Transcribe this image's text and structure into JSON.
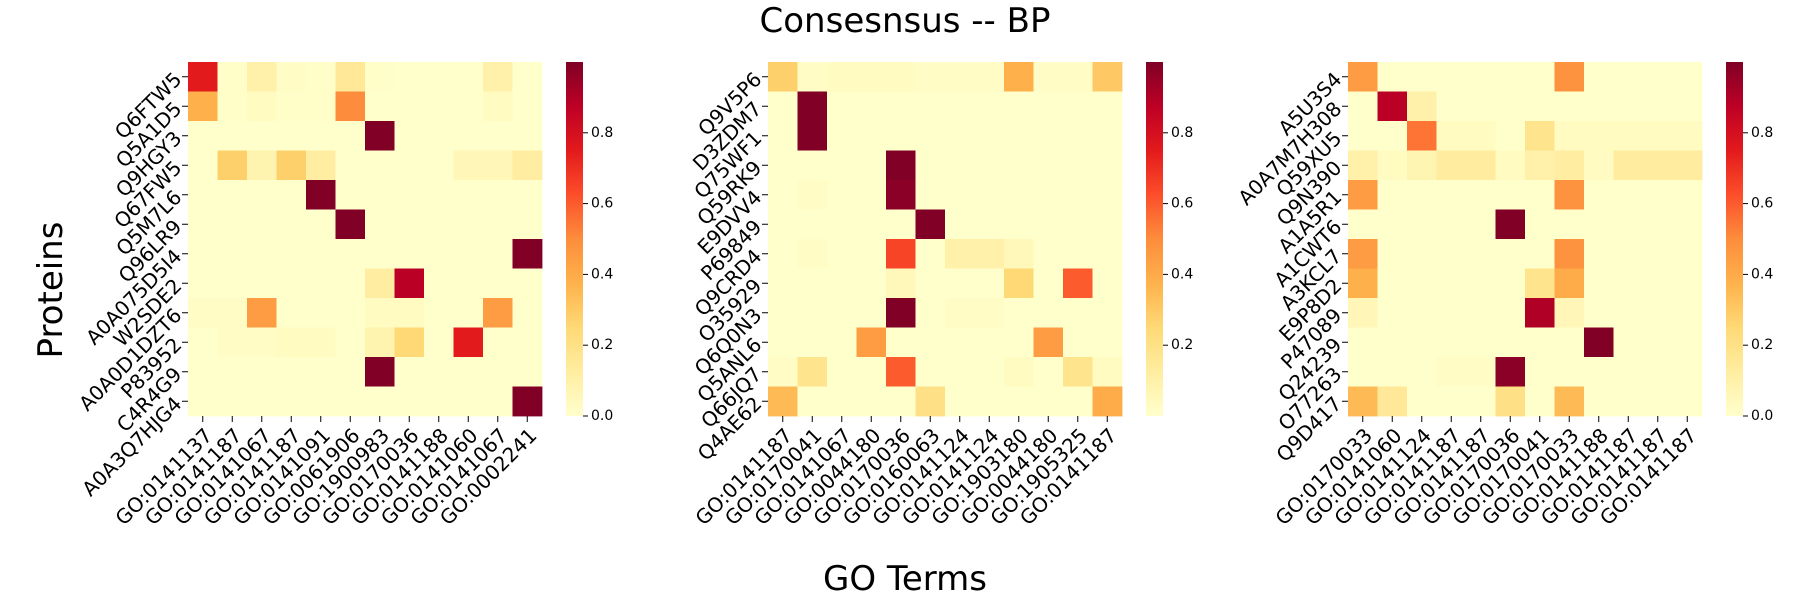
{
  "chart_data": {
    "type": "heatmap",
    "title": "Consesnsus -- BP",
    "xlabel": "GO Terms",
    "ylabel": "Proteins",
    "colormap": "YlOrRd",
    "colormap_stops": [
      "#ffffcc",
      "#ffeda0",
      "#fed976",
      "#feb24c",
      "#fd8d3c",
      "#fc4e2a",
      "#e31a1c",
      "#bd0026",
      "#800026"
    ],
    "panels": [
      {
        "rows": [
          "Q6FTW5",
          "Q5A1D5",
          "Q9HGY3",
          "Q67FW5",
          "Q5M7L6",
          "Q96LR9",
          "A0A075D5I4",
          "W2SDE2",
          "A0A0D1DZT6",
          "P83952",
          "C4R4G9",
          "A0A3Q7HJG4"
        ],
        "cols": [
          "GO:0141137",
          "GO:0141187",
          "GO:0141067",
          "GO:0141187",
          "GO:0141091",
          "GO:0061906",
          "GO:1900983",
          "GO:0170036",
          "GO:0141188",
          "GO:0141060",
          "GO:0141067",
          "GO:0002241"
        ],
        "values": [
          [
            0.75,
            0.01,
            0.1,
            0.02,
            0.01,
            0.15,
            0.01,
            0.0,
            0.0,
            0.0,
            0.1,
            0.0
          ],
          [
            0.38,
            0.01,
            0.03,
            0.01,
            0.01,
            0.5,
            0.0,
            0.0,
            0.0,
            0.0,
            0.03,
            0.0
          ],
          [
            0.0,
            0.0,
            0.0,
            0.0,
            0.0,
            0.0,
            1.0,
            0.0,
            0.0,
            0.0,
            0.0,
            0.0
          ],
          [
            0.0,
            0.28,
            0.08,
            0.28,
            0.12,
            0.0,
            0.0,
            0.0,
            0.0,
            0.06,
            0.06,
            0.12
          ],
          [
            0.0,
            0.0,
            0.0,
            0.0,
            1.0,
            0.0,
            0.0,
            0.0,
            0.0,
            0.0,
            0.0,
            0.0
          ],
          [
            0.0,
            0.0,
            0.0,
            0.0,
            0.0,
            1.0,
            0.0,
            0.0,
            0.0,
            0.0,
            0.0,
            0.0
          ],
          [
            0.0,
            0.0,
            0.0,
            0.0,
            0.0,
            0.0,
            0.0,
            0.0,
            0.0,
            0.0,
            0.0,
            1.0
          ],
          [
            0.0,
            0.0,
            0.0,
            0.0,
            0.0,
            0.0,
            0.12,
            0.88,
            0.0,
            0.0,
            0.0,
            0.0
          ],
          [
            0.02,
            0.02,
            0.45,
            0.0,
            0.0,
            0.0,
            0.03,
            0.03,
            0.0,
            0.0,
            0.45,
            0.0
          ],
          [
            0.0,
            0.02,
            0.02,
            0.03,
            0.03,
            0.0,
            0.08,
            0.25,
            0.0,
            0.75,
            0.0,
            0.0
          ],
          [
            0.0,
            0.0,
            0.0,
            0.0,
            0.0,
            0.0,
            1.0,
            0.0,
            0.0,
            0.0,
            0.0,
            0.0
          ],
          [
            0.0,
            0.0,
            0.0,
            0.0,
            0.0,
            0.0,
            0.0,
            0.0,
            0.0,
            0.0,
            0.0,
            1.0
          ]
        ],
        "colorbar": {
          "range": [
            0,
            1
          ],
          "ticks": [
            0.0,
            0.2,
            0.4,
            0.6,
            0.8
          ],
          "tick_labels": [
            "0.0",
            "0.2",
            "0.4",
            "0.6",
            "0.8"
          ]
        }
      },
      {
        "rows": [
          "Q9V5P6",
          "D3ZDM7",
          "Q75WF1",
          "Q59RK9",
          "E9DVV4",
          "P69849",
          "Q9CRD4",
          "O35929",
          "Q6Q0N3",
          "Q5ANL6",
          "Q66JQ7",
          "Q4AE62"
        ],
        "cols": [
          "GO:0141187",
          "GO:0170041",
          "GO:0141067",
          "GO:0044180",
          "GO:0170036",
          "GO:0160063",
          "GO:0141124",
          "GO:0141124",
          "GO:1903180",
          "GO:0044180",
          "GO:1905325",
          "GO:0141187"
        ],
        "values": [
          [
            0.28,
            0.02,
            0.03,
            0.03,
            0.03,
            0.02,
            0.02,
            0.02,
            0.38,
            0.02,
            0.02,
            0.3
          ],
          [
            0.0,
            1.0,
            0.0,
            0.0,
            0.0,
            0.0,
            0.0,
            0.0,
            0.0,
            0.0,
            0.0,
            0.0
          ],
          [
            0.0,
            1.0,
            0.0,
            0.0,
            0.0,
            0.0,
            0.0,
            0.0,
            0.0,
            0.0,
            0.0,
            0.0
          ],
          [
            0.0,
            0.0,
            0.0,
            0.0,
            1.0,
            0.0,
            0.0,
            0.0,
            0.0,
            0.0,
            0.0,
            0.0
          ],
          [
            0.0,
            0.02,
            0.0,
            0.0,
            0.98,
            0.0,
            0.0,
            0.0,
            0.0,
            0.0,
            0.0,
            0.0
          ],
          [
            0.0,
            0.0,
            0.0,
            0.0,
            0.0,
            1.0,
            0.0,
            0.0,
            0.0,
            0.0,
            0.0,
            0.0
          ],
          [
            0.0,
            0.02,
            0.0,
            0.0,
            0.65,
            0.0,
            0.1,
            0.1,
            0.05,
            0.0,
            0.0,
            0.0
          ],
          [
            0.0,
            0.0,
            0.0,
            0.0,
            0.05,
            0.0,
            0.0,
            0.0,
            0.25,
            0.0,
            0.6,
            0.0
          ],
          [
            0.0,
            0.0,
            0.0,
            0.0,
            1.0,
            0.0,
            0.02,
            0.02,
            0.0,
            0.0,
            0.0,
            0.0
          ],
          [
            0.0,
            0.0,
            0.0,
            0.45,
            0.0,
            0.0,
            0.0,
            0.0,
            0.0,
            0.45,
            0.0,
            0.0
          ],
          [
            0.02,
            0.18,
            0.0,
            0.0,
            0.6,
            0.0,
            0.0,
            0.0,
            0.03,
            0.0,
            0.18,
            0.03
          ],
          [
            0.35,
            0.0,
            0.0,
            0.0,
            0.0,
            0.2,
            0.0,
            0.0,
            0.0,
            0.0,
            0.0,
            0.4
          ]
        ],
        "colorbar": {
          "range": [
            0,
            1
          ],
          "ticks": [
            0.2,
            0.4,
            0.6,
            0.8
          ],
          "tick_labels": [
            "0.2",
            "0.4",
            "0.6",
            "0.8"
          ]
        }
      },
      {
        "rows": [
          "A5U3S4",
          "A0A7M7H308",
          "Q59XU5",
          "Q9N390",
          "A1A5R1",
          "A1CWT6",
          "A3KCL7",
          "E9P8D2",
          "P47089",
          "Q24239",
          "O77263",
          "Q9D417"
        ],
        "cols": [
          "GO:0170033",
          "GO:0141060",
          "GO:0141124",
          "GO:0141187",
          "GO:0141187",
          "GO:0170036",
          "GO:0170041",
          "GO:0170033",
          "GO:0141188",
          "GO:0141187",
          "GO:0141187",
          "GO:0141187"
        ],
        "values": [
          [
            0.45,
            0.0,
            0.0,
            0.0,
            0.0,
            0.0,
            0.0,
            0.48,
            0.0,
            0.0,
            0.0,
            0.0
          ],
          [
            0.0,
            0.88,
            0.1,
            0.0,
            0.0,
            0.0,
            0.0,
            0.0,
            0.0,
            0.0,
            0.0,
            0.0
          ],
          [
            0.0,
            0.0,
            0.55,
            0.03,
            0.03,
            0.0,
            0.18,
            0.03,
            0.03,
            0.03,
            0.03,
            0.03
          ],
          [
            0.1,
            0.03,
            0.07,
            0.13,
            0.13,
            0.03,
            0.1,
            0.12,
            0.03,
            0.13,
            0.13,
            0.13
          ],
          [
            0.45,
            0.0,
            0.0,
            0.0,
            0.0,
            0.0,
            0.0,
            0.48,
            0.0,
            0.0,
            0.0,
            0.0
          ],
          [
            0.0,
            0.0,
            0.0,
            0.0,
            0.0,
            1.0,
            0.0,
            0.0,
            0.0,
            0.0,
            0.0,
            0.0
          ],
          [
            0.45,
            0.0,
            0.0,
            0.0,
            0.0,
            0.0,
            0.0,
            0.48,
            0.0,
            0.0,
            0.0,
            0.0
          ],
          [
            0.38,
            0.0,
            0.0,
            0.0,
            0.0,
            0.0,
            0.18,
            0.4,
            0.0,
            0.0,
            0.0,
            0.0
          ],
          [
            0.06,
            0.0,
            0.0,
            0.0,
            0.0,
            0.0,
            0.9,
            0.06,
            0.0,
            0.0,
            0.0,
            0.0
          ],
          [
            0.0,
            0.0,
            0.0,
            0.0,
            0.0,
            0.0,
            0.0,
            0.0,
            1.0,
            0.0,
            0.0,
            0.0
          ],
          [
            0.0,
            0.0,
            0.0,
            0.02,
            0.02,
            0.98,
            0.0,
            0.0,
            0.0,
            0.0,
            0.0,
            0.0
          ],
          [
            0.35,
            0.15,
            0.0,
            0.0,
            0.0,
            0.2,
            0.0,
            0.35,
            0.0,
            0.0,
            0.0,
            0.0
          ]
        ],
        "colorbar": {
          "range": [
            0,
            1
          ],
          "ticks": [
            0.0,
            0.2,
            0.4,
            0.6,
            0.8
          ],
          "tick_labels": [
            "0.0",
            "0.2",
            "0.4",
            "0.6",
            "0.8"
          ]
        }
      }
    ]
  }
}
